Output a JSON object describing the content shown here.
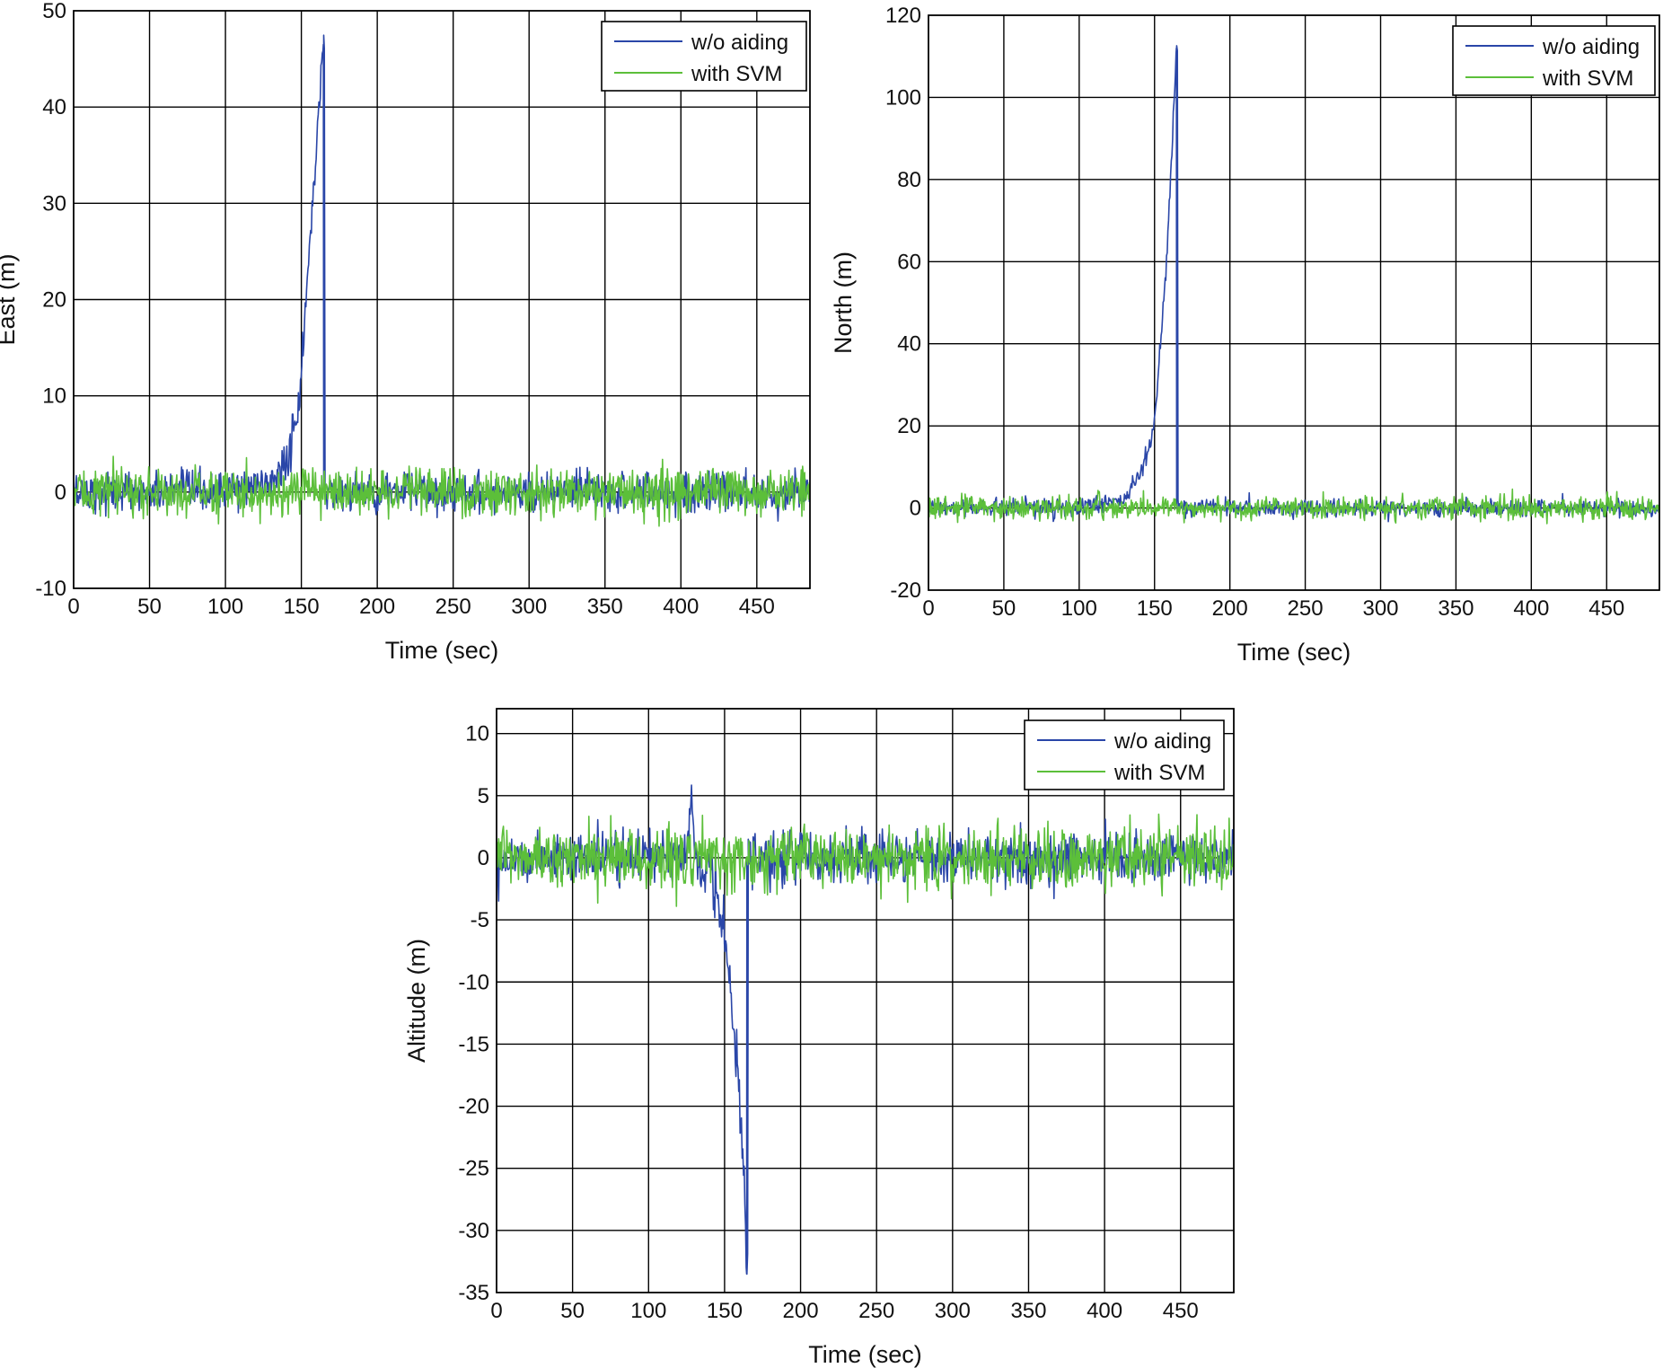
{
  "figure": {
    "colors": {
      "w/o aiding": "#2a46a8",
      "with SVM": "#5cbf3a",
      "grid": "#000000"
    }
  },
  "chart_data": [
    {
      "type": "line",
      "xlabel": "Time (sec)",
      "ylabel": "East (m)",
      "xlim": [
        0,
        485
      ],
      "ylim": [
        -10,
        50
      ],
      "xticks": [
        0,
        50,
        100,
        150,
        200,
        250,
        300,
        350,
        400,
        450
      ],
      "yticks": [
        -10,
        0,
        10,
        20,
        30,
        40,
        50
      ],
      "grid": true,
      "legend": {
        "location": "top-right",
        "entries": [
          "w/o aiding",
          "with SVM"
        ]
      },
      "series": [
        {
          "name": "w/o aiding",
          "color": "#2a46a8",
          "x": [
            0,
            50,
            100,
            130,
            135,
            140,
            145,
            148,
            150,
            152,
            154,
            156,
            158,
            160,
            162,
            163,
            164,
            164.5,
            165,
            200,
            250,
            300,
            350,
            400,
            450,
            485
          ],
          "y": [
            0,
            0,
            0,
            1,
            2,
            3,
            6,
            9,
            12,
            17,
            22,
            27,
            31,
            36,
            41,
            44,
            46,
            46.5,
            0,
            0,
            0,
            0,
            0,
            0,
            0,
            0
          ],
          "noise_sd": 1.0
        },
        {
          "name": "with SVM",
          "color": "#5cbf3a",
          "x": [
            0,
            485
          ],
          "y": [
            0,
            0
          ],
          "noise_sd": 1.2
        }
      ]
    },
    {
      "type": "line",
      "xlabel": "Time (sec)",
      "ylabel": "North (m)",
      "xlim": [
        0,
        485
      ],
      "ylim": [
        -20,
        120
      ],
      "xticks": [
        0,
        50,
        100,
        150,
        200,
        250,
        300,
        350,
        400,
        450
      ],
      "yticks": [
        -20,
        0,
        20,
        40,
        60,
        80,
        100,
        120
      ],
      "grid": true,
      "legend": {
        "location": "top-right",
        "entries": [
          "w/o aiding",
          "with SVM"
        ]
      },
      "series": [
        {
          "name": "w/o aiding",
          "color": "#2a46a8",
          "x": [
            0,
            50,
            100,
            130,
            135,
            140,
            145,
            148,
            150,
            152,
            154,
            156,
            158,
            160,
            162,
            163,
            164,
            164.5,
            165,
            200,
            250,
            300,
            350,
            400,
            450,
            485
          ],
          "y": [
            0,
            0,
            0,
            2,
            5,
            8,
            13,
            17,
            22,
            30,
            40,
            50,
            60,
            75,
            90,
            100,
            108,
            112,
            0,
            0,
            0,
            0,
            0,
            0,
            0,
            0
          ],
          "noise_sd": 1.0
        },
        {
          "name": "with SVM",
          "color": "#5cbf3a",
          "x": [
            0,
            485
          ],
          "y": [
            0,
            0
          ],
          "noise_sd": 1.3
        }
      ]
    },
    {
      "type": "line",
      "xlabel": "Time (sec)",
      "ylabel": "Altitude (m)",
      "xlim": [
        0,
        485
      ],
      "ylim": [
        -35,
        12
      ],
      "xticks": [
        0,
        50,
        100,
        150,
        200,
        250,
        300,
        350,
        400,
        450
      ],
      "yticks": [
        -35,
        -30,
        -25,
        -20,
        -15,
        -10,
        -5,
        0,
        5,
        10
      ],
      "grid": true,
      "legend": {
        "location": "top-right",
        "entries": [
          "w/o aiding",
          "with SVM"
        ]
      },
      "series": [
        {
          "name": "w/o aiding",
          "color": "#2a46a8",
          "x": [
            0,
            100,
            125,
            128,
            132,
            136,
            140,
            145,
            150,
            153,
            156,
            159,
            161,
            163,
            164,
            164.5,
            165,
            200,
            250,
            300,
            350,
            400,
            450,
            485
          ],
          "y": [
            0,
            0,
            1,
            4,
            0,
            -2,
            -1,
            -3,
            -6,
            -10,
            -14,
            -18,
            -22,
            -27,
            -31,
            -33.5,
            0,
            0,
            0,
            0,
            0,
            0,
            0,
            0
          ],
          "noise_sd": 1.0
        },
        {
          "name": "with SVM",
          "color": "#5cbf3a",
          "x": [
            0,
            485
          ],
          "y": [
            0,
            0
          ],
          "noise_sd": 1.2
        }
      ]
    }
  ]
}
